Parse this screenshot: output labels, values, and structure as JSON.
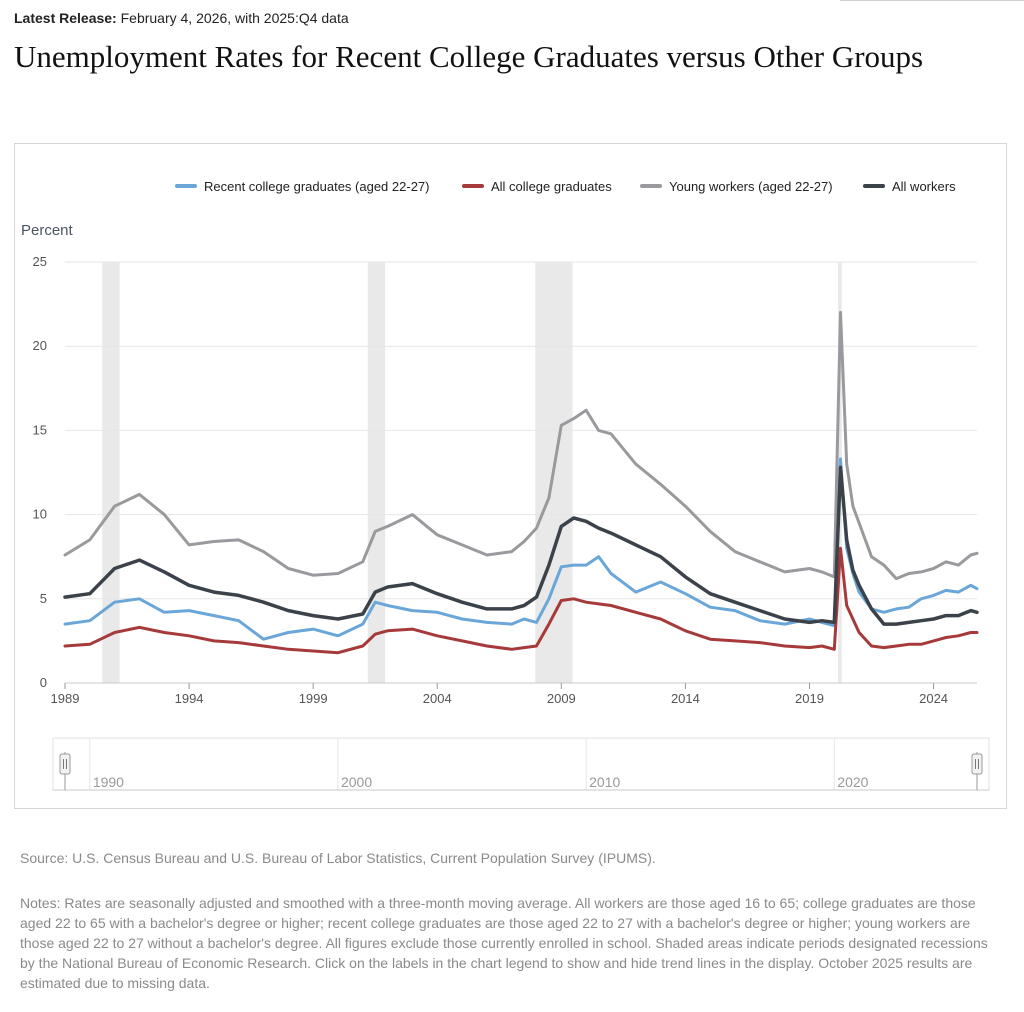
{
  "release": {
    "label": "Latest Release:",
    "text": "February 4, 2026, with 2025:Q4 data"
  },
  "title": "Unemployment Rates for Recent College Graduates versus Other Groups",
  "source": "Source: U.S. Census Bureau and U.S. Bureau of Labor Statistics, Current Population Survey (IPUMS).",
  "notes": "Notes: Rates are seasonally adjusted and smoothed with a three-month moving average. All workers are those aged 16 to 65; college graduates are those aged 22 to 65 with a bachelor's degree or higher; recent college graduates are those aged 22 to 27 with a bachelor's degree or higher; young workers are those aged 22 to 27 without a bachelor's degree. All figures exclude those currently enrolled in school. Shaded areas indicate periods designated recessions by the National Bureau of Economic Research. Click on the labels in the chart legend to show and hide trend lines in the display. October 2025 results are estimated due to missing data.",
  "chart_data": {
    "type": "line",
    "ylabel": "Percent",
    "xlim": [
      1989.0,
      2025.75
    ],
    "ylim": [
      0,
      25
    ],
    "yticks": [
      0,
      5,
      10,
      15,
      20,
      25
    ],
    "xticks": [
      1989,
      1994,
      1999,
      2004,
      2009,
      2014,
      2019,
      2024
    ],
    "navigator_labels": [
      "1990",
      "2000",
      "2010",
      "2020"
    ],
    "navigator_ticks": [
      1990,
      2000,
      2010,
      2020
    ],
    "recessions": [
      [
        1990.5,
        1991.2
      ],
      [
        2001.2,
        2001.9
      ],
      [
        2007.95,
        2009.45
      ],
      [
        2020.15,
        2020.3
      ]
    ],
    "legend_position": "top-right",
    "x": [
      1989.0,
      1990.0,
      1991.0,
      1992.0,
      1993.0,
      1994.0,
      1995.0,
      1996.0,
      1997.0,
      1998.0,
      1999.0,
      2000.0,
      2001.0,
      2001.5,
      2002.0,
      2003.0,
      2004.0,
      2005.0,
      2006.0,
      2007.0,
      2007.5,
      2008.0,
      2008.5,
      2009.0,
      2009.5,
      2010.0,
      2010.5,
      2011.0,
      2012.0,
      2013.0,
      2014.0,
      2015.0,
      2016.0,
      2017.0,
      2018.0,
      2019.0,
      2019.5,
      2020.0,
      2020.25,
      2020.5,
      2020.75,
      2021.0,
      2021.5,
      2022.0,
      2022.5,
      2023.0,
      2023.5,
      2024.0,
      2024.5,
      2025.0,
      2025.5,
      2025.75
    ],
    "series": [
      {
        "name": "Recent college graduates (aged 22-27)",
        "color": "#6aa6d8",
        "values": [
          3.5,
          3.7,
          4.8,
          5.0,
          4.2,
          4.3,
          4.0,
          3.7,
          2.6,
          3.0,
          3.2,
          2.8,
          3.5,
          4.8,
          4.6,
          4.3,
          4.2,
          3.8,
          3.6,
          3.5,
          3.8,
          3.6,
          5.0,
          6.9,
          7.0,
          7.0,
          7.5,
          6.5,
          5.4,
          6.0,
          5.3,
          4.5,
          4.3,
          3.7,
          3.5,
          3.8,
          3.6,
          3.4,
          13.3,
          8.0,
          6.5,
          5.4,
          4.4,
          4.2,
          4.4,
          4.5,
          5.0,
          5.2,
          5.5,
          5.4,
          5.8,
          5.6
        ]
      },
      {
        "name": "All college graduates",
        "color": "#a63a3a",
        "values": [
          2.2,
          2.3,
          3.0,
          3.3,
          3.0,
          2.8,
          2.5,
          2.4,
          2.2,
          2.0,
          1.9,
          1.8,
          2.2,
          2.9,
          3.1,
          3.2,
          2.8,
          2.5,
          2.2,
          2.0,
          2.1,
          2.2,
          3.5,
          4.9,
          5.0,
          4.8,
          4.7,
          4.6,
          4.2,
          3.8,
          3.1,
          2.6,
          2.5,
          2.4,
          2.2,
          2.1,
          2.2,
          2.0,
          8.0,
          4.6,
          3.8,
          3.0,
          2.2,
          2.1,
          2.2,
          2.3,
          2.3,
          2.5,
          2.7,
          2.8,
          3.0,
          3.0
        ]
      },
      {
        "name": "Young workers (aged 22-27)",
        "color": "#9a9a9e",
        "values": [
          7.6,
          8.5,
          10.5,
          11.2,
          10.0,
          8.2,
          8.4,
          8.5,
          7.8,
          6.8,
          6.4,
          6.5,
          7.2,
          9.0,
          9.3,
          10.0,
          8.8,
          8.2,
          7.6,
          7.8,
          8.4,
          9.2,
          11.0,
          15.3,
          15.7,
          16.2,
          15.0,
          14.8,
          13.0,
          11.8,
          10.5,
          9.0,
          7.8,
          7.2,
          6.6,
          6.8,
          6.6,
          6.3,
          22.0,
          13.0,
          10.5,
          9.5,
          7.5,
          7.0,
          6.2,
          6.5,
          6.6,
          6.8,
          7.2,
          7.0,
          7.6,
          7.7
        ]
      },
      {
        "name": "All workers",
        "color": "#3c424a",
        "values": [
          5.1,
          5.3,
          6.8,
          7.3,
          6.6,
          5.8,
          5.4,
          5.2,
          4.8,
          4.3,
          4.0,
          3.8,
          4.1,
          5.4,
          5.7,
          5.9,
          5.3,
          4.8,
          4.4,
          4.4,
          4.6,
          5.1,
          7.0,
          9.3,
          9.8,
          9.6,
          9.2,
          8.9,
          8.2,
          7.5,
          6.3,
          5.3,
          4.8,
          4.3,
          3.8,
          3.6,
          3.7,
          3.6,
          12.8,
          8.5,
          6.7,
          5.8,
          4.4,
          3.5,
          3.5,
          3.6,
          3.7,
          3.8,
          4.0,
          4.0,
          4.3,
          4.2
        ]
      }
    ]
  }
}
